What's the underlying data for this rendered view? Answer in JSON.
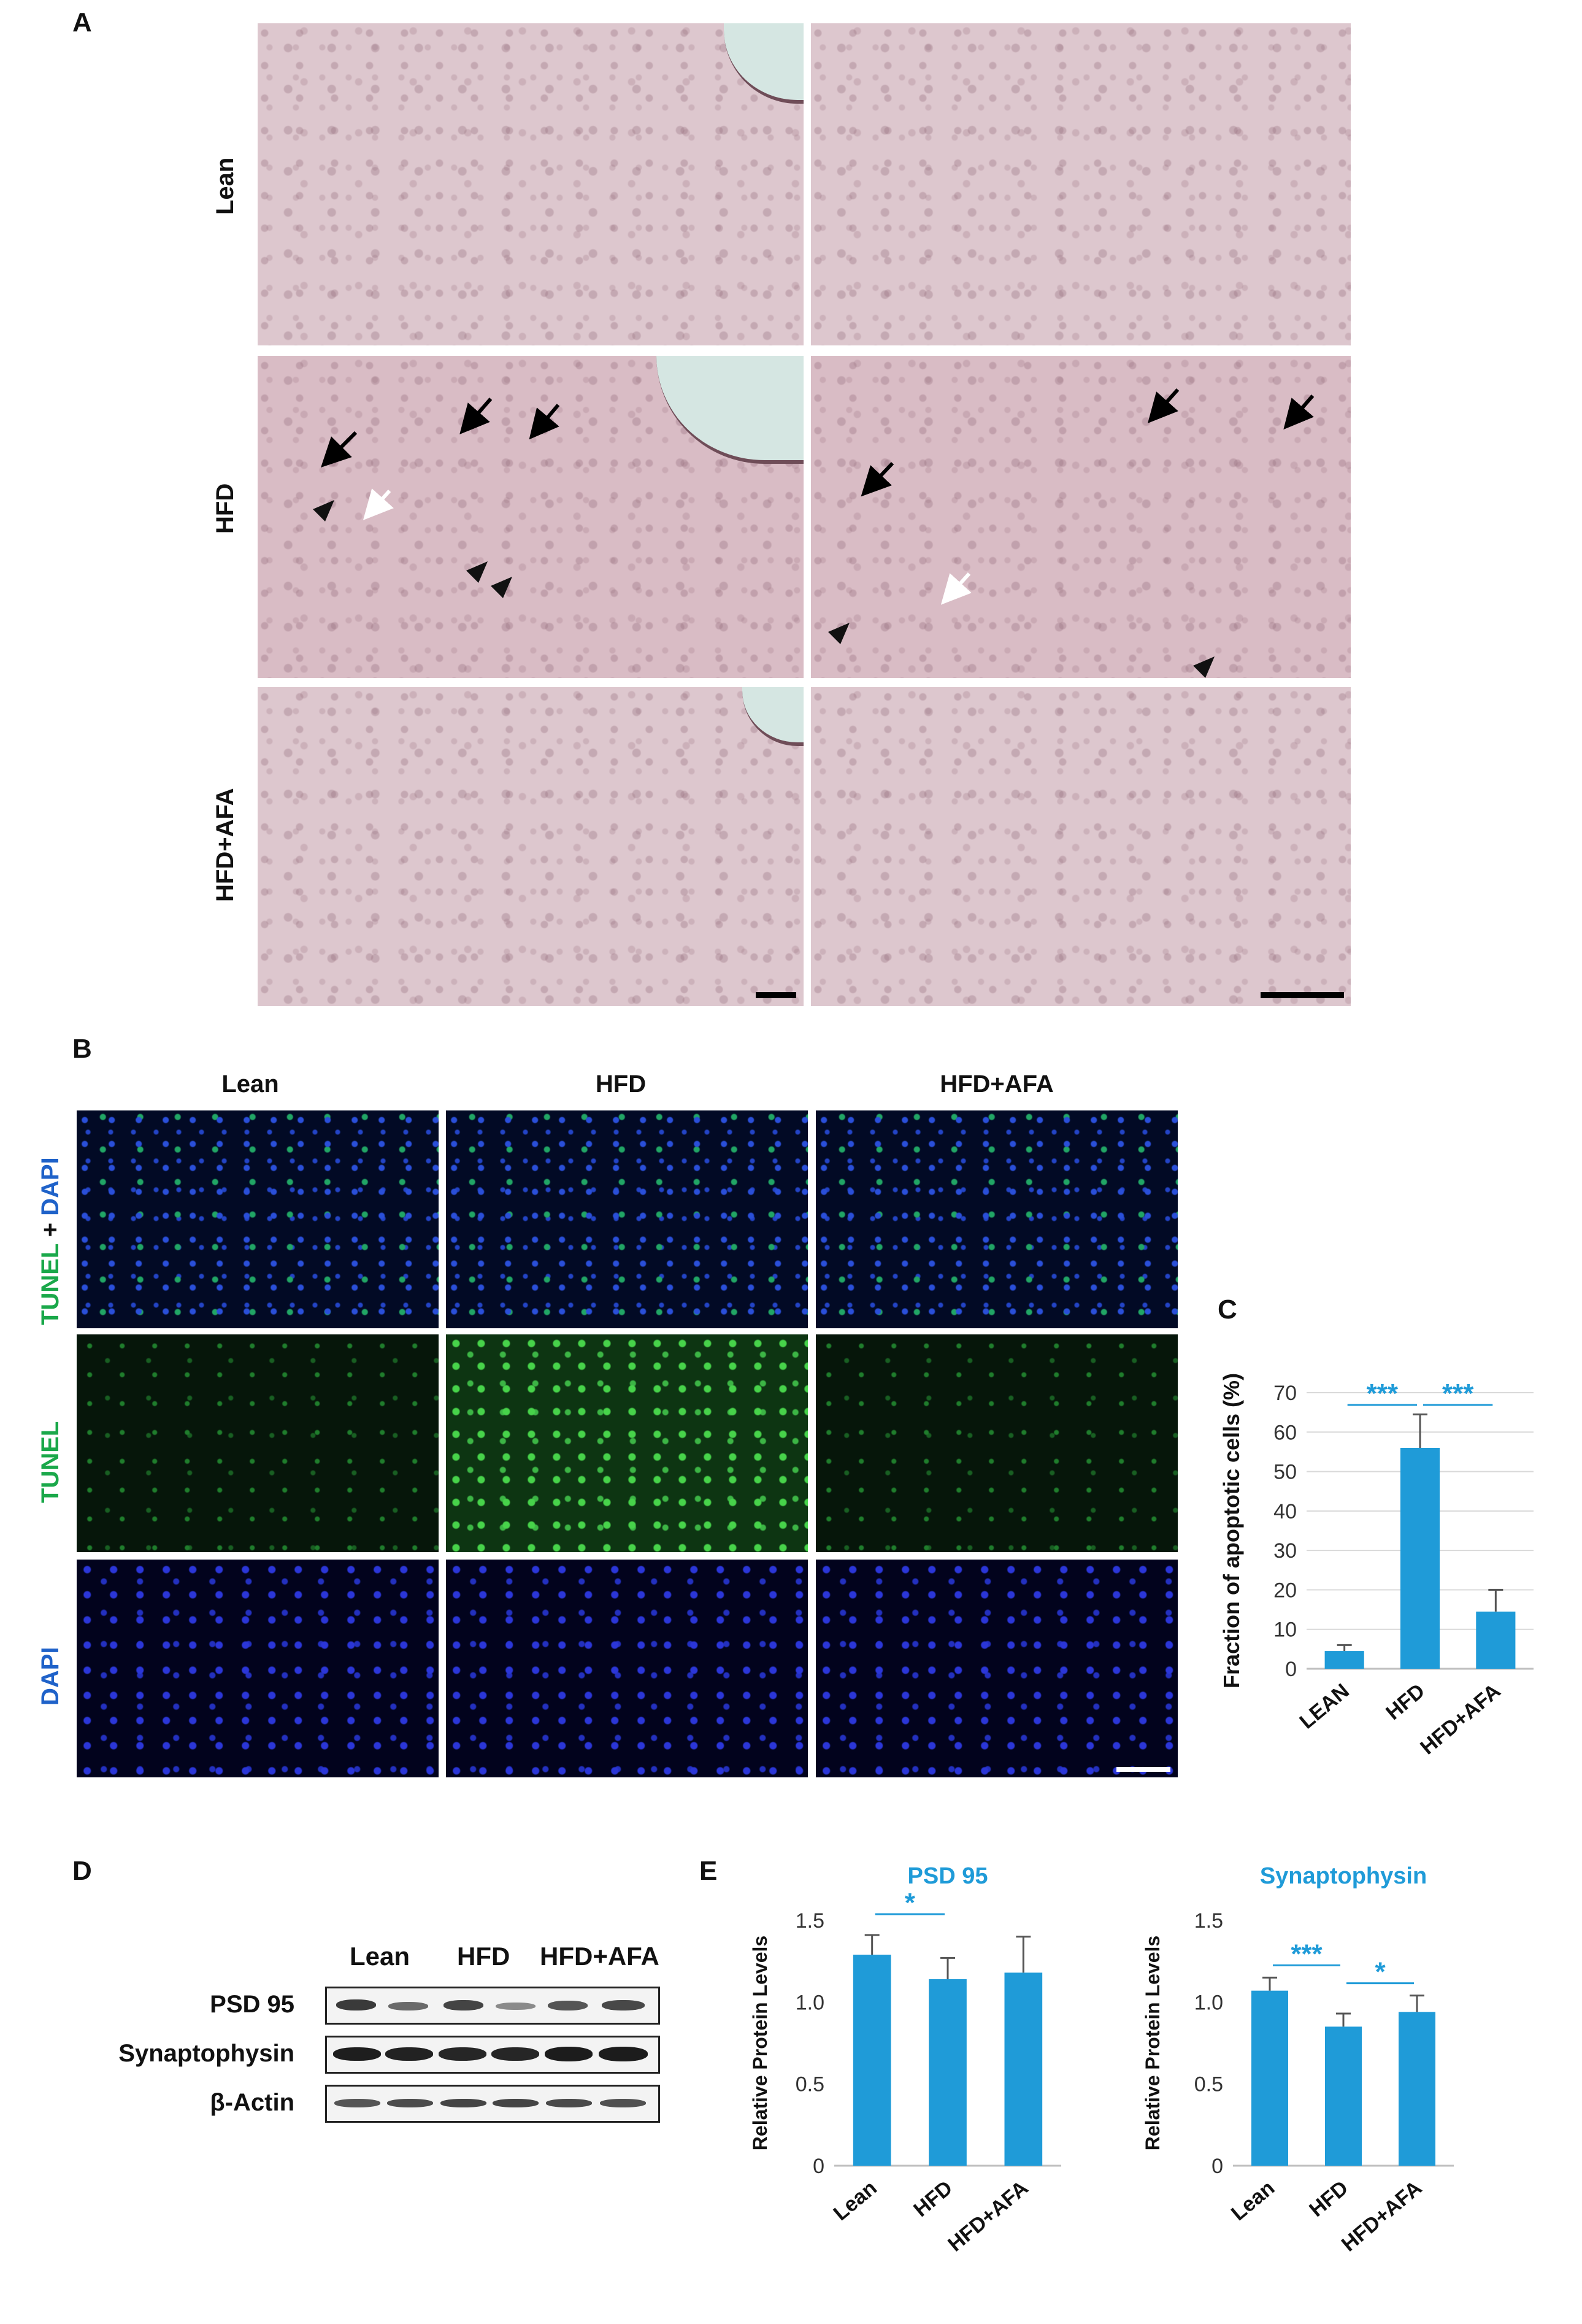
{
  "panel_letters": {
    "a": "A",
    "b": "B",
    "c": "C",
    "d": "D",
    "e": "E"
  },
  "panelA": {
    "row_labels": [
      "Lean",
      "HFD",
      "HFD+AFA"
    ]
  },
  "panelB": {
    "column_headers": [
      "Lean",
      "HFD",
      "HFD+AFA"
    ],
    "row_labels": {
      "merge_tunel": "TUNEL",
      "merge_plus": "+",
      "merge_dapi": "DAPI",
      "tunel": "TUNEL",
      "dapi": "DAPI"
    }
  },
  "panelD": {
    "lane_headers": [
      "Lean",
      "HFD",
      "HFD+AFA"
    ],
    "blot_labels": [
      "PSD 95",
      "Synaptophysin",
      "β-Actin"
    ]
  },
  "colors": {
    "bar": "#1f9bd8",
    "significance": "#1f9bd8",
    "tunel_green": "#1aa84a",
    "dapi_blue": "#1f62c9"
  },
  "chart_data": [
    {
      "id": "C",
      "type": "bar",
      "title": "",
      "categories": [
        "LEAN",
        "HFD",
        "HFD+AFA"
      ],
      "values": [
        4.5,
        56,
        14.5
      ],
      "errors": [
        1.5,
        8.5,
        5.5
      ],
      "ylabel": "Fraction of apoptotic cells (%)",
      "xlabel": "",
      "ylim": [
        0,
        70
      ],
      "yticks": [
        "0",
        "10",
        "20",
        "30",
        "40",
        "50",
        "60",
        "70"
      ],
      "grid": true,
      "significance": [
        {
          "from": 0,
          "to": 1,
          "label": "***"
        },
        {
          "from": 1,
          "to": 2,
          "label": "***"
        }
      ]
    },
    {
      "id": "E1",
      "type": "bar",
      "title": "PSD 95",
      "categories": [
        "Lean",
        "HFD",
        "HFD+AFA"
      ],
      "values": [
        1.29,
        1.14,
        1.18
      ],
      "errors": [
        0.12,
        0.13,
        0.22
      ],
      "ylabel": "Relative Protein Levels",
      "xlabel": "",
      "ylim": [
        0,
        1.5
      ],
      "yticks": [
        "0",
        "0.5",
        "1.0",
        "1.5"
      ],
      "grid": false,
      "significance": [
        {
          "from": 0,
          "to": 1,
          "label": "*"
        }
      ]
    },
    {
      "id": "E2",
      "type": "bar",
      "title": "Synaptophysin",
      "categories": [
        "Lean",
        "HFD",
        "HFD+AFA"
      ],
      "values": [
        1.07,
        0.85,
        0.94
      ],
      "errors": [
        0.08,
        0.08,
        0.1
      ],
      "ylabel": "Relative Protein Levels",
      "xlabel": "",
      "ylim": [
        0,
        1.5
      ],
      "yticks": [
        "0",
        "0.5",
        "1.0",
        "1.5"
      ],
      "grid": false,
      "significance": [
        {
          "from": 0,
          "to": 1,
          "label": "***"
        },
        {
          "from": 1,
          "to": 2,
          "label": "*"
        }
      ]
    }
  ]
}
